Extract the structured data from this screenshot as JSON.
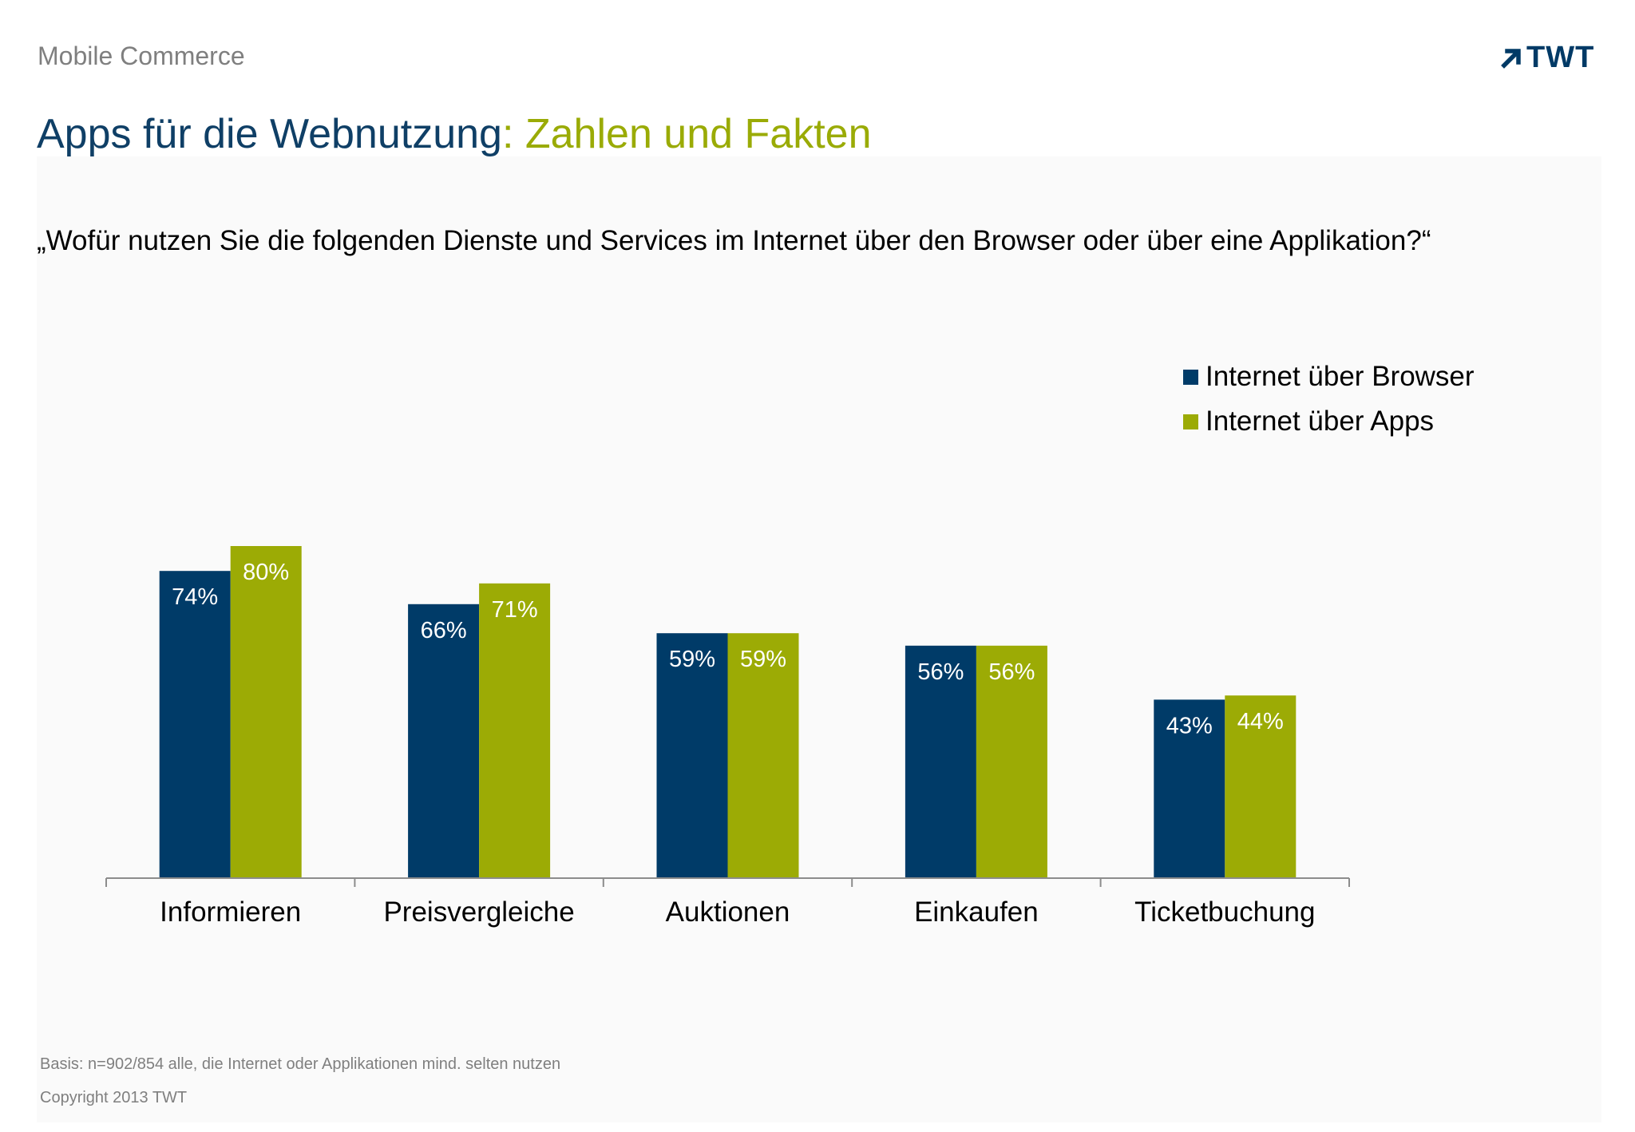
{
  "header": {
    "section": "Mobile Commerce",
    "logo_text": "TWT",
    "logo_icon": "arrow-up-right-icon",
    "title_main": "Apps für die Webnutzung",
    "title_sub": ": Zahlen und Fakten"
  },
  "question": "„Wofür nutzen Sie die folgenden Dienste und Services im Internet über den Browser oder über eine Applikation?“",
  "colors": {
    "browser": "#003b68",
    "apps": "#9cab05",
    "title_blue": "#0f3f66",
    "title_green": "#9aab06"
  },
  "chart_data": {
    "type": "bar",
    "categories": [
      "Informieren",
      "Preisvergleiche",
      "Auktionen",
      "Einkaufen",
      "Ticketbuchung"
    ],
    "series": [
      {
        "name": "Internet über Browser",
        "values": [
          74,
          66,
          59,
          56,
          43
        ],
        "labels": [
          "74%",
          "66%",
          "59%",
          "56%",
          "43%"
        ]
      },
      {
        "name": "Internet über Apps",
        "values": [
          80,
          71,
          59,
          56,
          44
        ],
        "labels": [
          "80%",
          "71%",
          "59%",
          "56%",
          "44%"
        ]
      }
    ],
    "unit": "%",
    "ylim": [
      0,
      100
    ],
    "grid": false,
    "legend_position": "top-right"
  },
  "footer": {
    "basis": "Basis: n=902/854 alle, die Internet oder Applikationen mind. selten nutzen",
    "copyright": "Copyright 2013 TWT"
  }
}
